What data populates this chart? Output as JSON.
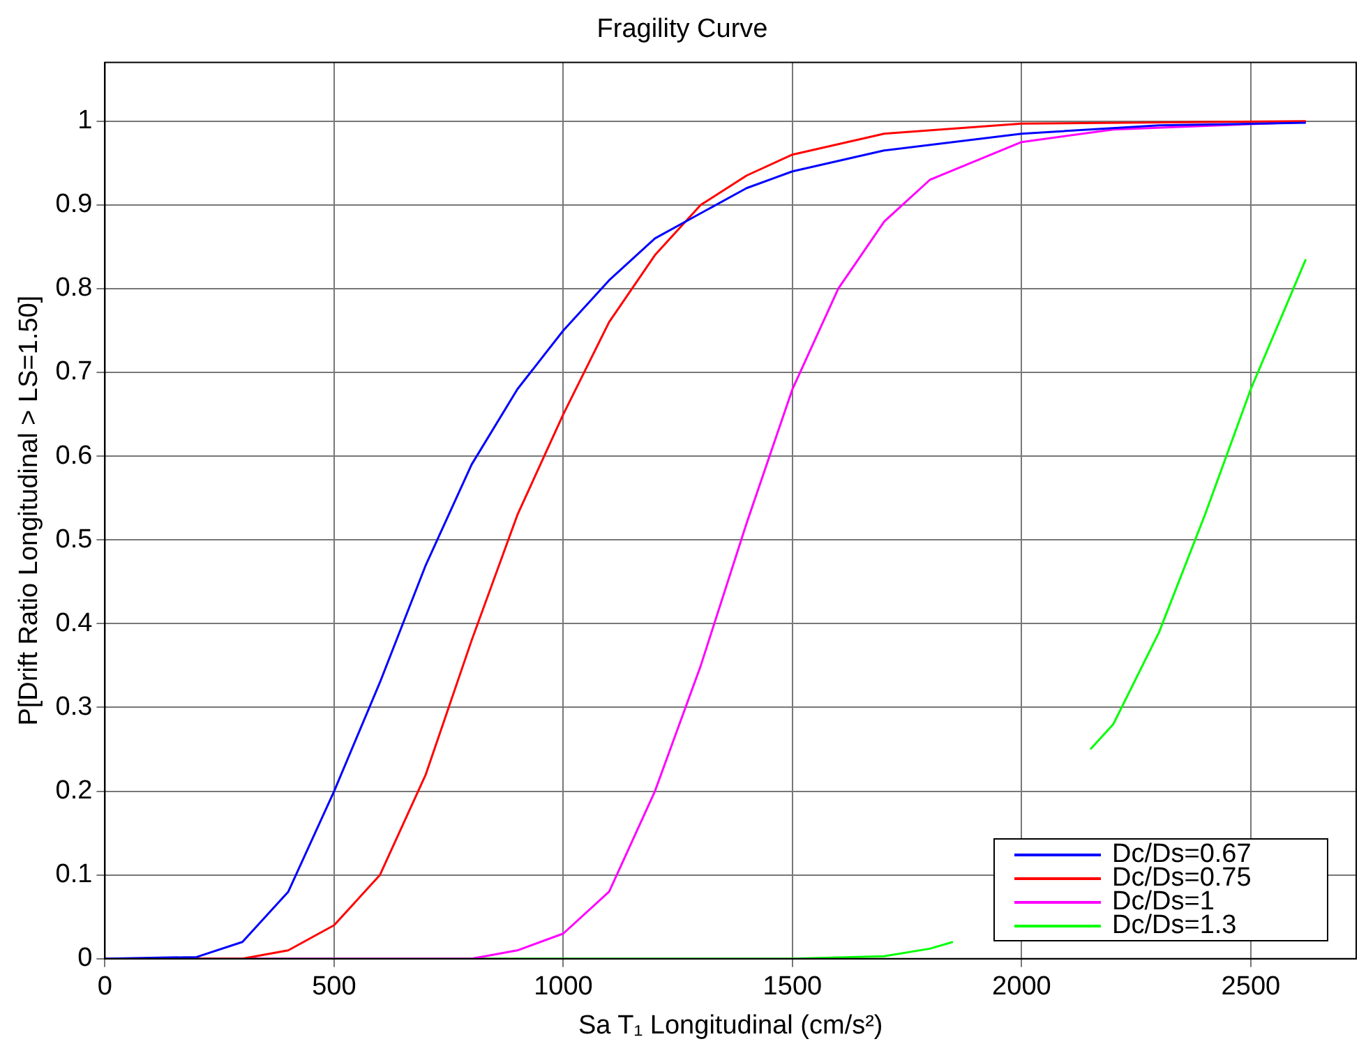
{
  "chart_data": {
    "type": "line",
    "title": "Fragility Curve",
    "xlabel": "Sa T₁ Longitudinal (cm/s²)",
    "ylabel": "P[Drift Ratio Longitudinal > LS=1.50]",
    "xlim": [
      0,
      2730
    ],
    "xticks": [
      0,
      500,
      1000,
      1500,
      2000,
      2500
    ],
    "ylim": [
      0,
      1.07
    ],
    "yticks": [
      0,
      0.1,
      0.2,
      0.3,
      0.4,
      0.5,
      0.6,
      0.7,
      0.8,
      0.9,
      1
    ],
    "grid": true,
    "legend": "bottom right",
    "marker": "none",
    "line_style": "solid",
    "series": [
      {
        "name": "Dc/Ds=0.67",
        "color": "#0000ff",
        "x": [
          0,
          200,
          300,
          400,
          500,
          600,
          700,
          800,
          900,
          1000,
          1100,
          1200,
          1300,
          1400,
          1500,
          1700,
          2000,
          2300,
          2620
        ],
        "values": [
          0,
          0.002,
          0.02,
          0.08,
          0.2,
          0.33,
          0.47,
          0.59,
          0.68,
          0.75,
          0.81,
          0.86,
          0.89,
          0.92,
          0.94,
          0.965,
          0.985,
          0.995,
          0.998
        ]
      },
      {
        "name": "Dc/Ds=0.75",
        "color": "#ff0000",
        "x": [
          0,
          300,
          400,
          500,
          600,
          700,
          800,
          900,
          1000,
          1100,
          1200,
          1300,
          1400,
          1500,
          1700,
          2000,
          2620
        ],
        "values": [
          0,
          0,
          0.01,
          0.04,
          0.1,
          0.22,
          0.38,
          0.53,
          0.65,
          0.76,
          0.84,
          0.9,
          0.935,
          0.96,
          0.985,
          0.997,
          1
        ]
      },
      {
        "name": "Dc/Ds=1",
        "color": "#ff00ff",
        "x": [
          0,
          800,
          900,
          1000,
          1100,
          1200,
          1300,
          1400,
          1500,
          1600,
          1700,
          1800,
          2000,
          2200,
          2620
        ],
        "values": [
          0,
          0,
          0.01,
          0.03,
          0.08,
          0.2,
          0.35,
          0.52,
          0.68,
          0.8,
          0.88,
          0.93,
          0.975,
          0.99,
          0.999
        ]
      },
      {
        "name": "Dc/Ds=1.3",
        "color": "#00ff00",
        "x": [
          0,
          1500,
          1700,
          1800,
          1850,
          1900,
          2000,
          2100,
          2150,
          2200,
          2300,
          2400,
          2500,
          2620
        ],
        "values": [
          0,
          0,
          0.003,
          0.012,
          0.02,
          null,
          null,
          null,
          0.25,
          0.28,
          0.39,
          0.53,
          0.68,
          0.835
        ]
      }
    ]
  }
}
